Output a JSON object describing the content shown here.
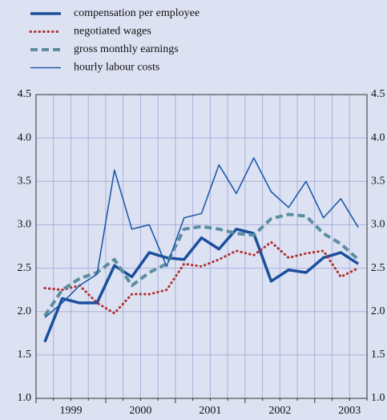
{
  "chart_data": {
    "type": "line",
    "categories": [
      null,
      "1999",
      null,
      null,
      null,
      "2000",
      null,
      null,
      null,
      "2001",
      null,
      null,
      null,
      "2002",
      null,
      null,
      null,
      "2003",
      null
    ],
    "series": [
      {
        "name": "compensation per employee",
        "color": "#1a4f9c",
        "style": "solid-thick",
        "values": [
          1.65,
          2.15,
          2.1,
          2.1,
          2.53,
          2.4,
          2.68,
          2.62,
          2.6,
          2.85,
          2.72,
          2.95,
          2.9,
          2.35,
          2.48,
          2.45,
          2.62,
          2.68,
          2.55
        ]
      },
      {
        "name": "negotiated wages",
        "color": "#b03030",
        "style": "dotted",
        "values": [
          2.27,
          2.25,
          2.3,
          2.1,
          1.98,
          2.2,
          2.2,
          2.25,
          2.55,
          2.52,
          2.6,
          2.7,
          2.65,
          2.8,
          2.62,
          2.67,
          2.7,
          2.4,
          2.5
        ]
      },
      {
        "name": "gross monthly earnings",
        "color": "#5b8fa0",
        "style": "dashed",
        "values": [
          1.95,
          2.25,
          2.38,
          2.45,
          2.6,
          2.3,
          2.45,
          2.55,
          2.95,
          2.98,
          2.95,
          2.9,
          2.88,
          3.07,
          3.12,
          3.1,
          2.9,
          2.78,
          2.6
        ]
      },
      {
        "name": "hourly labour costs",
        "color": "#1f5aa8",
        "style": "solid-thin",
        "values": [
          1.93,
          2.1,
          2.3,
          2.43,
          3.63,
          2.95,
          3.0,
          2.52,
          3.08,
          3.13,
          3.69,
          3.36,
          3.77,
          3.38,
          3.2,
          3.5,
          3.08,
          3.3,
          2.97
        ]
      }
    ],
    "ylim": [
      1.0,
      4.5
    ],
    "yticks": [
      {
        "value": 1,
        "label": "1.0"
      },
      1.5,
      {
        "value": 2,
        "label": "2.0"
      },
      2.5,
      {
        "value": 3,
        "label": "3.0"
      },
      3.5,
      {
        "value": 4,
        "label": "4.0"
      },
      4.5
    ],
    "grid": true
  }
}
